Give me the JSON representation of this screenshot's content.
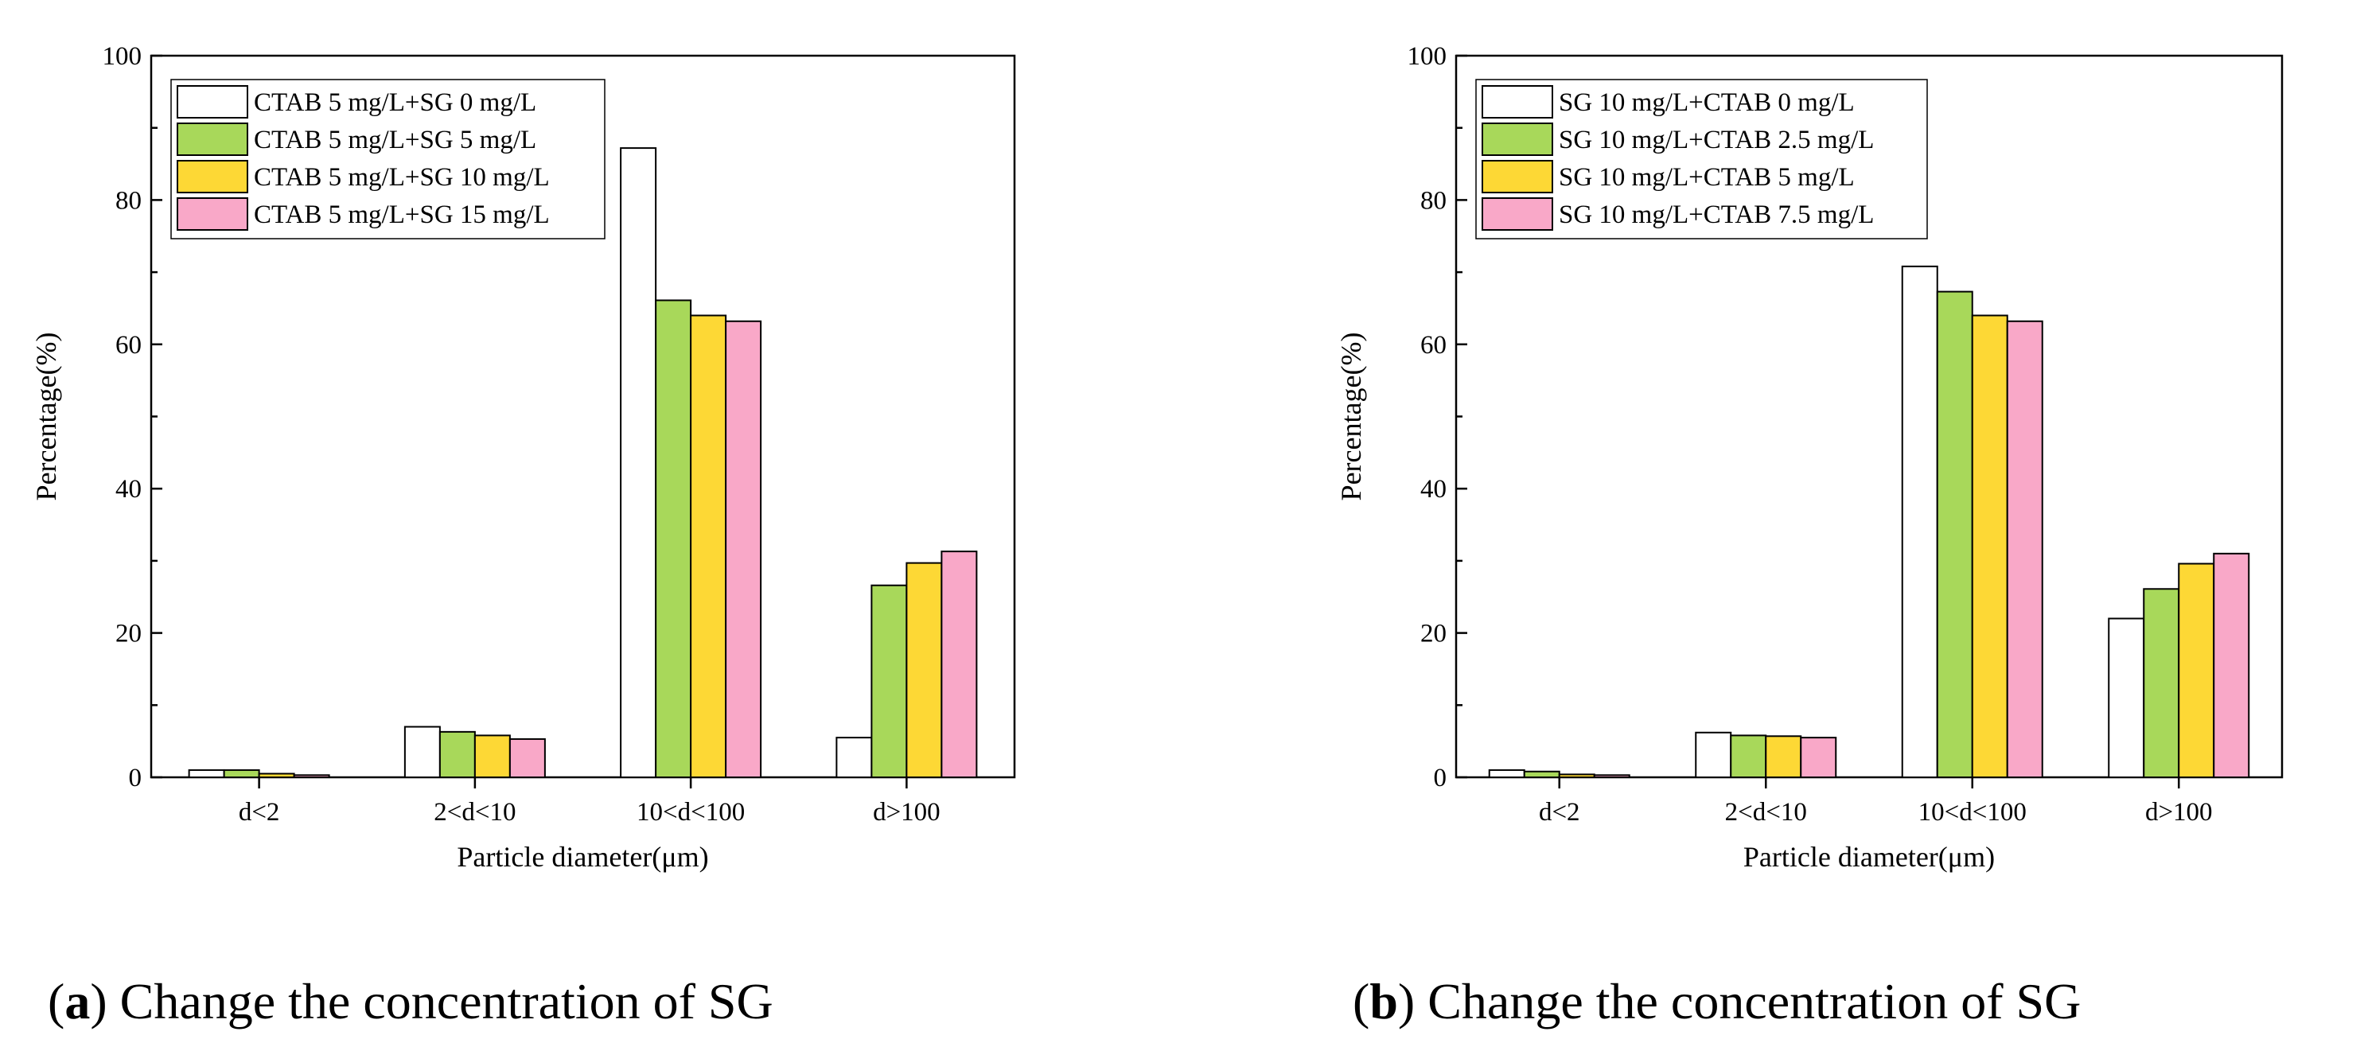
{
  "figure": {
    "panels": [
      {
        "caption_letter": "a",
        "caption_text": "Change the concentration of SG"
      },
      {
        "caption_letter": "b",
        "caption_text": "Change the concentration of SG"
      }
    ]
  },
  "chart_data": [
    {
      "type": "bar",
      "title": "",
      "xlabel": "Particle diameter(μm)",
      "ylabel": "Percentage(%)",
      "ylim": [
        0,
        100
      ],
      "yticks": [
        0,
        20,
        40,
        60,
        80,
        100
      ],
      "categories": [
        "d<2",
        "2<d<10",
        "10<d<100",
        "d>100"
      ],
      "legend_position": "top-left",
      "series": [
        {
          "name": "CTAB 5 mg/L+SG 0 mg/L",
          "color": "#ffffff",
          "values": [
            1.0,
            7.0,
            87.2,
            5.5
          ]
        },
        {
          "name": "CTAB 5 mg/L+SG 5 mg/L",
          "color": "#a8d85a",
          "values": [
            1.0,
            6.3,
            66.1,
            26.6
          ]
        },
        {
          "name": "CTAB 5 mg/L+SG 10 mg/L",
          "color": "#fdd835",
          "values": [
            0.5,
            5.8,
            64.0,
            29.7
          ]
        },
        {
          "name": "CTAB 5 mg/L+SG 15 mg/L",
          "color": "#f9a8c8",
          "values": [
            0.3,
            5.3,
            63.2,
            31.3
          ]
        }
      ]
    },
    {
      "type": "bar",
      "title": "",
      "xlabel": "Particle diameter(μm)",
      "ylabel": "Percentage(%)",
      "ylim": [
        0,
        100
      ],
      "yticks": [
        0,
        20,
        40,
        60,
        80,
        100
      ],
      "categories": [
        "d<2",
        "2<d<10",
        "10<d<100",
        "d>100"
      ],
      "legend_position": "top-left",
      "series": [
        {
          "name": "SG 10 mg/L+CTAB 0 mg/L",
          "color": "#ffffff",
          "values": [
            1.0,
            6.2,
            70.8,
            22.0
          ]
        },
        {
          "name": "SG 10 mg/L+CTAB 2.5 mg/L",
          "color": "#a8d85a",
          "values": [
            0.8,
            5.8,
            67.3,
            26.1
          ]
        },
        {
          "name": "SG 10 mg/L+CTAB 5 mg/L",
          "color": "#fdd835",
          "values": [
            0.4,
            5.7,
            64.0,
            29.6
          ]
        },
        {
          "name": "SG 10 mg/L+CTAB 7.5 mg/L",
          "color": "#f9a8c8",
          "values": [
            0.3,
            5.5,
            63.2,
            31.0
          ]
        }
      ]
    }
  ]
}
